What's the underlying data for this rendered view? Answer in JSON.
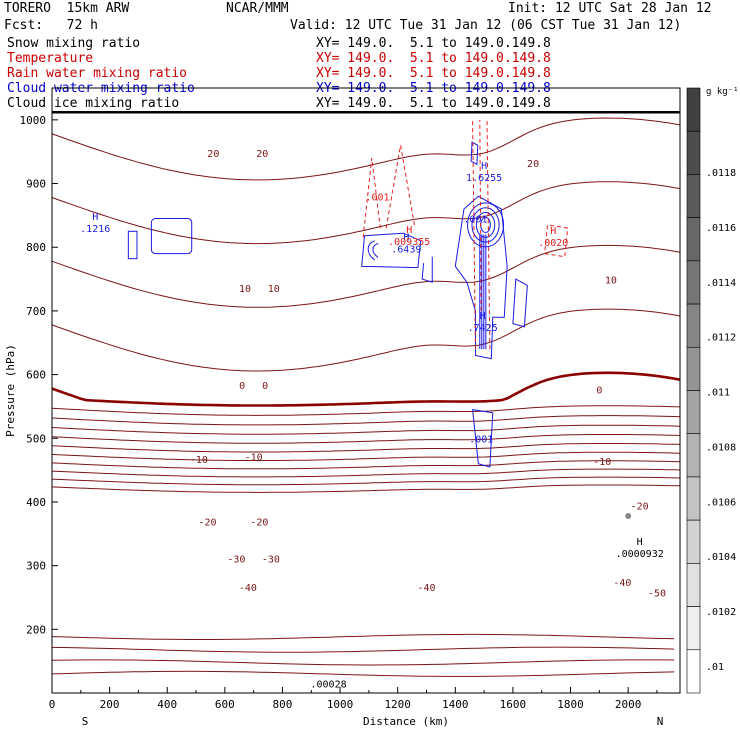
{
  "header": {
    "model": "TORERO  15km ARW",
    "center": "NCAR/MMM",
    "init": "Init: 12 UTC Sat 28 Jan 12",
    "fcst": "Fcst:   72 h",
    "valid": "Valid: 12 UTC Tue 31 Jan 12 (06 CST Tue 31 Jan 12)",
    "fields": [
      {
        "name": "Snow mixing ratio",
        "xy": "XY= 149.0.  5.1 to 149.0.149.8",
        "color": "#000000"
      },
      {
        "name": "Temperature",
        "xy": "XY= 149.0.  5.1 to 149.0.149.8",
        "color": "#cc0000"
      },
      {
        "name": "Rain water mixing ratio",
        "xy": "XY= 149.0.  5.1 to 149.0.149.8",
        "color": "#cc0000"
      },
      {
        "name": "Cloud water mixing ratio",
        "xy": "XY= 149.0.  5.1 to 149.0.149.8",
        "color": "#0000cc"
      },
      {
        "name": "Cloud ice mixing ratio",
        "xy": "XY= 149.0.  5.1 to 149.0.149.8",
        "color": "#000000"
      }
    ]
  },
  "chart_data": {
    "type": "cross-section",
    "xlabel": "Distance (km)",
    "ylabel": "Pressure (hPa)",
    "xlim": [
      0,
      2180
    ],
    "ylim": [
      1050,
      100
    ],
    "xticks": [
      "0",
      "200",
      "400",
      "600",
      "800",
      "1000",
      "1200",
      "1400",
      "1600",
      "1800",
      "2000"
    ],
    "yticks": [
      "200",
      "300",
      "400",
      "500",
      "600",
      "700",
      "800",
      "900",
      "1000"
    ],
    "x_ends": {
      "left": "S",
      "right": "N"
    },
    "colorbar": {
      "unit": "g kg⁻¹",
      "ticks": [
        ".0118",
        ".0116",
        ".0114",
        ".0112",
        ".011",
        ".0108",
        ".0106",
        ".0104",
        ".0102",
        ".01"
      ],
      "colors": [
        "#404040",
        "#4d4d4d",
        "#5a5a5a",
        "#686868",
        "#767676",
        "#858585",
        "#949494",
        "#a4a4a4",
        "#b3b3b3",
        "#c3c3c3",
        "#d2d2d2",
        "#e1e1e1",
        "#efefef",
        "#ffffff"
      ]
    },
    "temperature": {
      "levels": [
        -50,
        -45,
        -40,
        -35,
        -30,
        -25,
        -20,
        -15,
        -10,
        -5,
        0,
        5,
        10,
        15,
        20
      ],
      "labels": [
        {
          "text": "-50",
          "x": 2100,
          "p": 256
        },
        {
          "text": "-40",
          "x": 680,
          "p": 265
        },
        {
          "text": "-40",
          "x": 1300,
          "p": 265
        },
        {
          "text": "-40",
          "x": 1980,
          "p": 273
        },
        {
          "text": "-30",
          "x": 640,
          "p": 310
        },
        {
          "text": "-30",
          "x": 760,
          "p": 310
        },
        {
          "text": "-20",
          "x": 540,
          "p": 368
        },
        {
          "text": "-20",
          "x": 720,
          "p": 368
        },
        {
          "text": "-20",
          "x": 2040,
          "p": 393
        },
        {
          "text": "-10",
          "x": 510,
          "p": 466
        },
        {
          "text": "-10",
          "x": 700,
          "p": 470
        },
        {
          "text": "-10",
          "x": 1910,
          "p": 463
        },
        {
          "text": "0",
          "x": 660,
          "p": 582
        },
        {
          "text": "0",
          "x": 740,
          "p": 582
        },
        {
          "text": "0",
          "x": 1900,
          "p": 575
        },
        {
          "text": "10",
          "x": 670,
          "p": 734
        },
        {
          "text": "10",
          "x": 770,
          "p": 734
        },
        {
          "text": "10",
          "x": 1940,
          "p": 748
        },
        {
          "text": "20",
          "x": 560,
          "p": 946
        },
        {
          "text": "20",
          "x": 730,
          "p": 946
        },
        {
          "text": "20",
          "x": 1670,
          "p": 931
        }
      ]
    },
    "cloud_water": {
      "maxima": [
        {
          "mark": "H",
          "value": ".1216",
          "x": 150,
          "p": 830
        },
        {
          "mark": "H",
          "value": ".6439",
          "x": 1230,
          "p": 798
        },
        {
          "mark": "H",
          "value": ".7425",
          "x": 1495,
          "p": 675
        },
        {
          "mark": "",
          "value": ".001",
          "x": 1490,
          "p": 500
        },
        {
          "mark": "",
          "value": ".001",
          "x": 1470,
          "p": 845
        },
        {
          "mark": "H",
          "value": "1.6255",
          "x": 1500,
          "p": 910
        }
      ]
    },
    "rain_water": {
      "maxima": [
        {
          "mark": "H",
          "value": ".009355",
          "x": 1240,
          "p": 810
        },
        {
          "mark": "H",
          "value": ".0020",
          "x": 1740,
          "p": 808
        },
        {
          "mark": "",
          "value": ".001",
          "x": 1130,
          "p": 880
        }
      ]
    },
    "cloud_ice": {
      "maxima": [
        {
          "mark": "H",
          "value": ".0000932",
          "x": 2040,
          "p": 320
        },
        {
          "mark": "",
          "value": ".00028",
          "x": 960,
          "p": 115
        }
      ]
    },
    "snow": {
      "maxima": [
        {
          "mark": "",
          "value": "",
          "x": 2000,
          "p": 378
        }
      ]
    }
  }
}
